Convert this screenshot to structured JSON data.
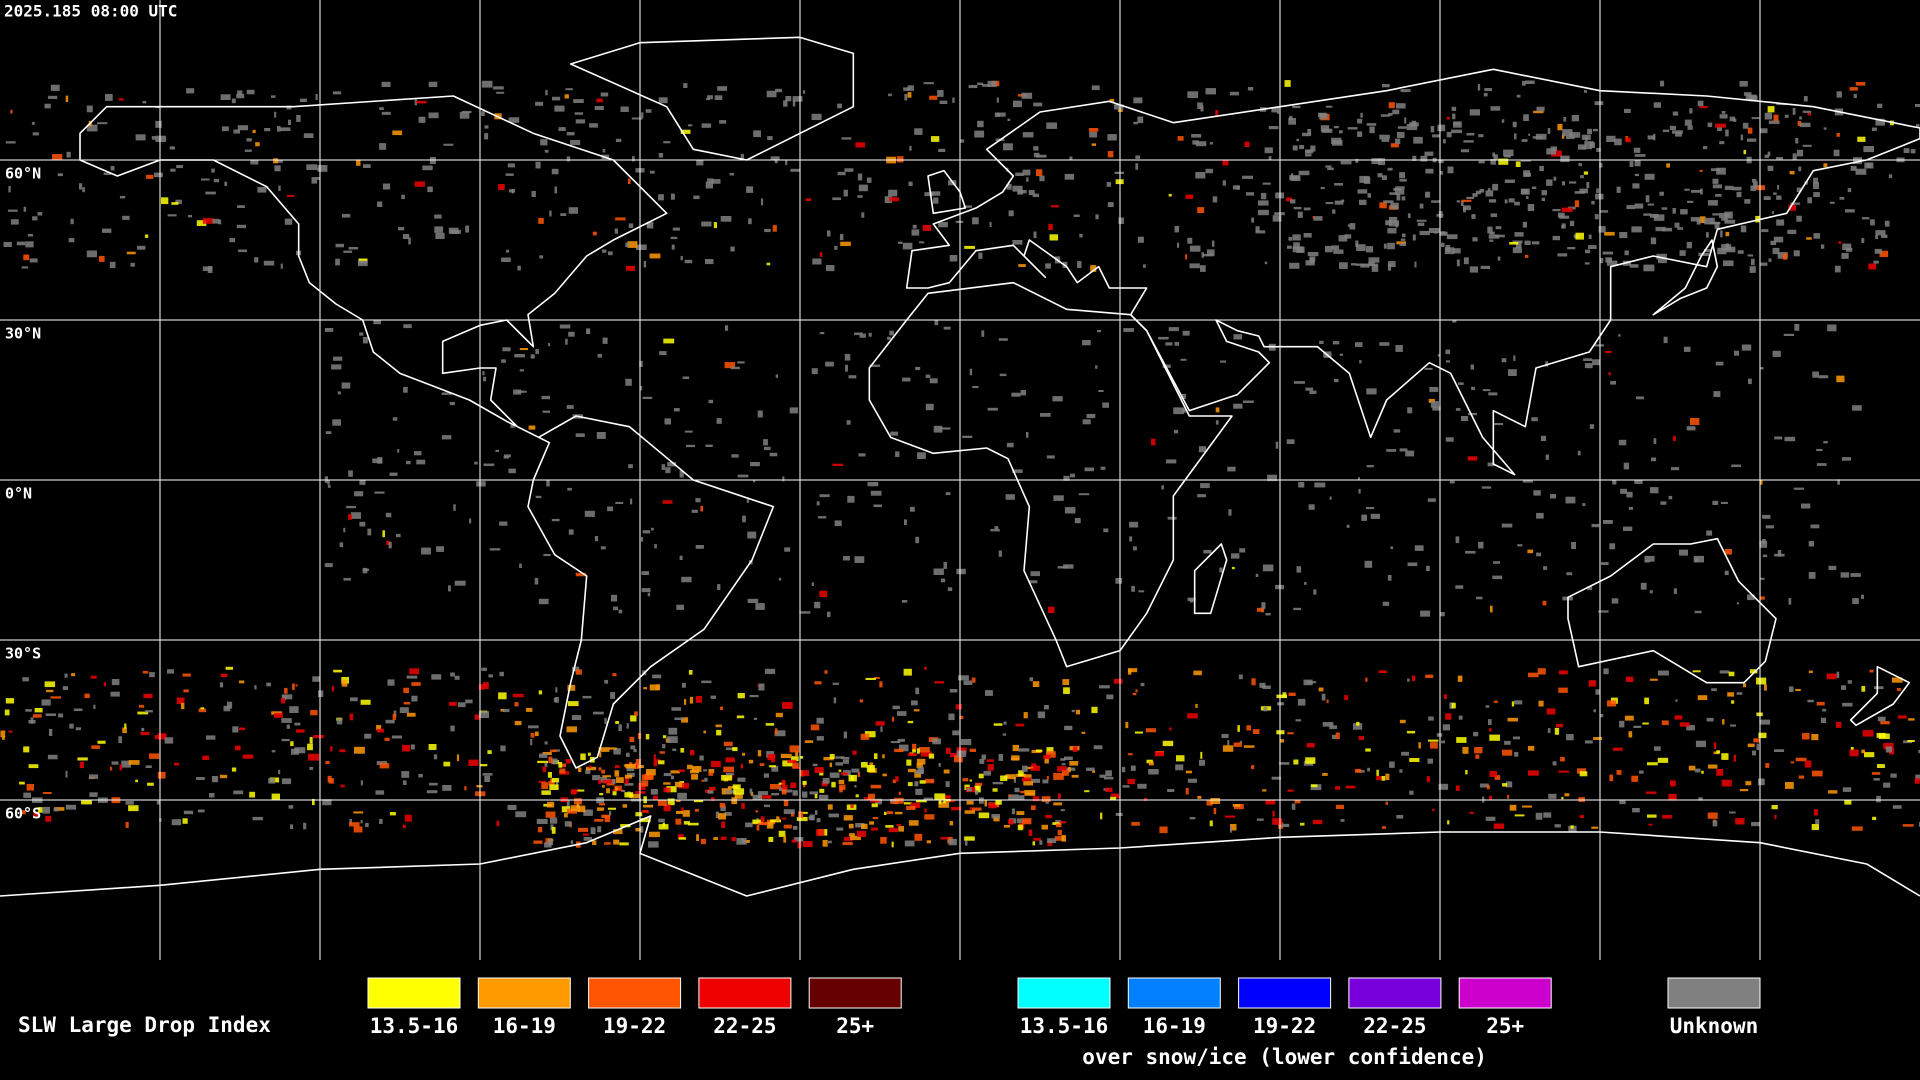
{
  "header": {
    "timestamp": "2025.185 08:00 UTC"
  },
  "map": {
    "latitude_labels": [
      "60°N",
      "30°N",
      "0°N",
      "30°S",
      "60°S"
    ],
    "background": "#000000",
    "grid_color": "#ffffff",
    "coastline_color": "#ffffff"
  },
  "legend": {
    "title": "SLW Large Drop Index",
    "groups": [
      {
        "items": [
          {
            "label": "13.5-16",
            "color": "#ffff00"
          },
          {
            "label": "16-19",
            "color": "#ff9900"
          },
          {
            "label": "19-22",
            "color": "#ff5500"
          },
          {
            "label": "22-25",
            "color": "#ee0000"
          },
          {
            "label": "25+",
            "color": "#660000"
          }
        ]
      },
      {
        "items": [
          {
            "label": "13.5-16",
            "color": "#00ffff"
          },
          {
            "label": "16-19",
            "color": "#0080ff"
          },
          {
            "label": "19-22",
            "color": "#0000ff"
          },
          {
            "label": "22-25",
            "color": "#7700dd"
          },
          {
            "label": "25+",
            "color": "#cc00cc"
          }
        ],
        "caption": "over snow/ice (lower confidence)"
      },
      {
        "items": [
          {
            "label": "Unknown",
            "color": "#808080"
          }
        ]
      }
    ]
  }
}
